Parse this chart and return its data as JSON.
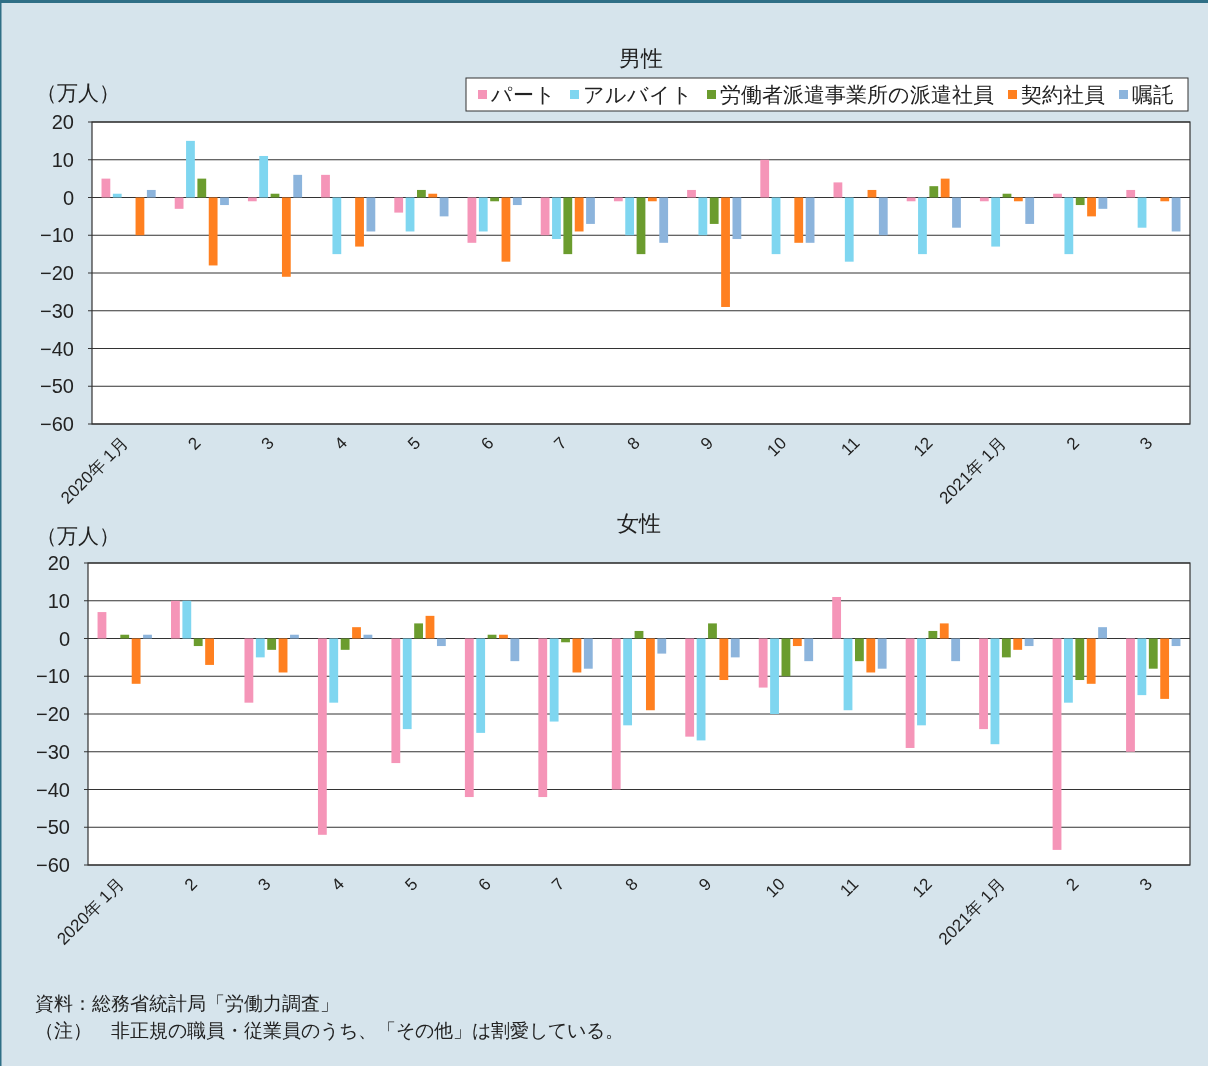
{
  "chart_data": [
    {
      "type": "bar",
      "title": "男性",
      "ylabel": "（万人）",
      "legend": "top right",
      "grid": "y",
      "categories": [
        "2020年 1月",
        "2",
        "3",
        "4",
        "5",
        "6",
        "7",
        "8",
        "9",
        "10",
        "11",
        "12",
        "2021年 1月",
        "2",
        "3"
      ],
      "ylim": [
        -60,
        20
      ],
      "yticks": [
        20,
        10,
        0,
        {
          "value": -10,
          "label": "−10"
        },
        {
          "value": -20,
          "label": "−20"
        },
        {
          "value": -30,
          "label": "−30"
        },
        {
          "value": -40,
          "label": "−40"
        },
        {
          "value": -50,
          "label": "−50"
        },
        {
          "value": -60,
          "label": "−60"
        }
      ],
      "series": [
        {
          "name": "パート",
          "color": "#f595b8",
          "values": [
            5,
            -3,
            -1,
            6,
            -4,
            -12,
            -10,
            -1,
            2,
            10,
            4,
            -1,
            -1,
            1,
            2
          ]
        },
        {
          "name": "アルバイト",
          "color": "#7fd6f0",
          "values": [
            1,
            15,
            11,
            -15,
            -9,
            -9,
            -11,
            -10,
            -10,
            -15,
            -17,
            -15,
            -13,
            -15,
            -8
          ]
        },
        {
          "name": "労働者派遣事業所の派遣社員",
          "color": "#6b9c2e",
          "values": [
            0,
            5,
            1,
            0,
            2,
            -1,
            -15,
            -15,
            -7,
            0,
            0,
            3,
            1,
            -2,
            0
          ]
        },
        {
          "name": "契約社員",
          "color": "#ff8020",
          "values": [
            -10,
            -18,
            -21,
            -13,
            1,
            -17,
            -9,
            -1,
            -29,
            -12,
            2,
            5,
            -1,
            -5,
            -1
          ]
        },
        {
          "name": "嘱託",
          "color": "#8cb4dc",
          "values": [
            2,
            -2,
            6,
            -9,
            -5,
            -2,
            -7,
            -12,
            -11,
            -12,
            -10,
            -8,
            -7,
            -3,
            -9
          ]
        }
      ]
    },
    {
      "type": "bar",
      "title": "女性",
      "ylabel": "（万人）",
      "grid": "y",
      "categories": [
        "2020年 1月",
        "2",
        "3",
        "4",
        "5",
        "6",
        "7",
        "8",
        "9",
        "10",
        "11",
        "12",
        "2021年 1月",
        "2",
        "3"
      ],
      "ylim": [
        -60,
        20
      ],
      "yticks": [
        20,
        10,
        0,
        {
          "value": -10,
          "label": "−10"
        },
        {
          "value": -20,
          "label": "−20"
        },
        {
          "value": -30,
          "label": "−30"
        },
        {
          "value": -40,
          "label": "−40"
        },
        {
          "value": -50,
          "label": "−50"
        },
        {
          "value": -60,
          "label": "−60"
        }
      ],
      "series": [
        {
          "color": "#f595b8",
          "values": [
            7,
            10,
            -17,
            -52,
            -33,
            -42,
            -42,
            -40,
            -26,
            -13,
            11,
            -29,
            -24,
            -56,
            -30
          ]
        },
        {
          "color": "#7fd6f0",
          "values": [
            0,
            10,
            -5,
            -17,
            -24,
            -25,
            -22,
            -23,
            -27,
            -20,
            -19,
            -23,
            -28,
            -17,
            -15
          ]
        },
        {
          "color": "#6b9c2e",
          "values": [
            1,
            -2,
            -3,
            -3,
            4,
            1,
            -1,
            2,
            4,
            -10,
            -6,
            2,
            -5,
            -11,
            -8
          ]
        },
        {
          "color": "#ff8020",
          "values": [
            -12,
            -7,
            -9,
            3,
            6,
            1,
            -9,
            -19,
            -11,
            -2,
            -9,
            4,
            -3,
            -12,
            -16
          ]
        },
        {
          "color": "#8cb4dc",
          "values": [
            1,
            0,
            1,
            1,
            -2,
            -6,
            -8,
            -4,
            -5,
            -6,
            -8,
            -6,
            -2,
            3,
            -2
          ]
        }
      ],
      "annotations": [
        "資料：総務省統計局「労働力調査」",
        "（注）　非正規の職員・従業員のうち、「その他」は割愛している。"
      ]
    }
  ]
}
